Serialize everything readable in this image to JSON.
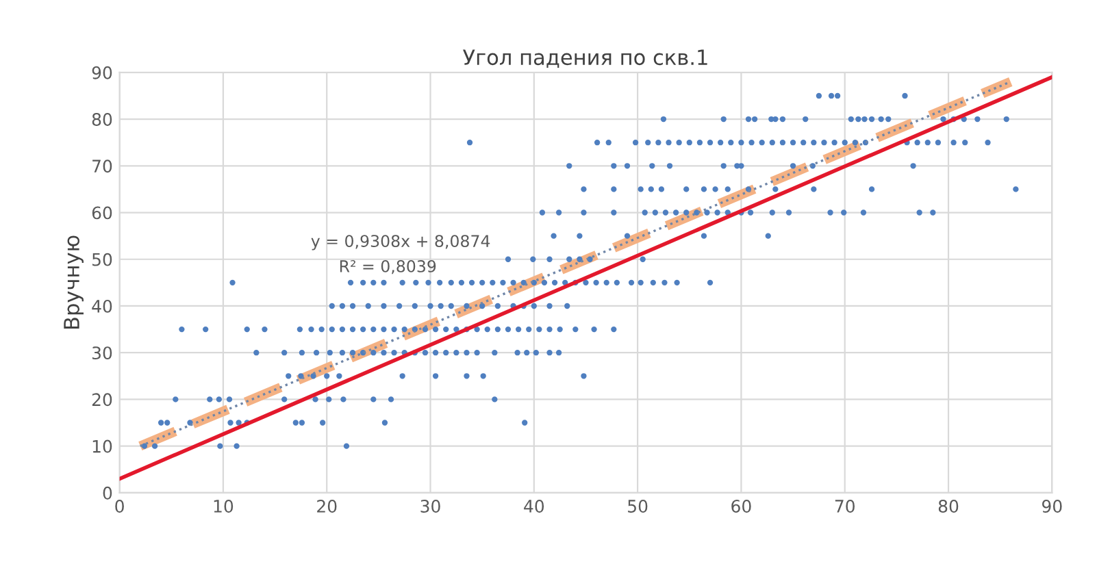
{
  "chart_data": {
    "type": "scatter",
    "title": "Угол падения по скв.1",
    "ylabel": "Вручную",
    "xlim": [
      0,
      90
    ],
    "ylim": [
      0,
      90
    ],
    "xticks": [
      0,
      10,
      20,
      30,
      40,
      50,
      60,
      70,
      80,
      90
    ],
    "yticks": [
      0,
      10,
      20,
      30,
      40,
      50,
      60,
      70,
      80,
      90
    ],
    "grid": true,
    "legend": false,
    "annotations": [
      "y = 0,9308x + 8,0874",
      "R² = 0,8039"
    ],
    "series": [
      {
        "marker": "circle",
        "color": "#4f7fc0",
        "x": [
          2.4,
          3.4,
          9.7,
          11.3,
          21.9,
          4,
          4.6,
          6.8,
          10.7,
          11.5,
          12.3,
          17,
          17.6,
          19.6,
          25.6,
          39.1,
          5.4,
          8.7,
          9.6,
          10.6,
          15.9,
          18.9,
          20.2,
          21.6,
          24.5,
          26.2,
          36.2,
          16.3,
          17.5,
          18.7,
          20,
          21.2,
          27.3,
          30.5,
          33.5,
          35.1,
          44.8,
          13.2,
          15.9,
          17.6,
          19,
          20.3,
          21.5,
          22.5,
          23.5,
          24.5,
          25.5,
          26.5,
          27.5,
          28.5,
          29.5,
          30.5,
          31.5,
          32.5,
          33.5,
          34.5,
          36.2,
          38.4,
          39.3,
          40.2,
          41.5,
          42.4,
          6,
          8.3,
          12.3,
          14,
          17.4,
          18.5,
          19.5,
          20.5,
          21.5,
          22.5,
          23.5,
          24.5,
          25.5,
          26.5,
          27.5,
          28.5,
          29.5,
          30.5,
          31.5,
          32.5,
          33.5,
          34.5,
          35.5,
          36.5,
          37.5,
          38.5,
          39.5,
          40.5,
          41.5,
          42.5,
          44,
          45.8,
          47.7,
          20.5,
          21.5,
          22.5,
          24,
          25.5,
          27,
          28.5,
          30,
          31,
          32,
          33.5,
          35,
          36.5,
          38,
          39,
          40,
          41.5,
          43.2,
          10.9,
          22.3,
          23.5,
          24.5,
          25.5,
          27.3,
          28.6,
          29.8,
          30.9,
          32,
          33,
          34,
          35,
          36,
          37,
          38,
          39,
          40,
          41,
          42,
          43,
          44,
          45,
          46,
          47,
          48,
          49.4,
          50.3,
          51.5,
          52.6,
          53.8,
          57,
          37.5,
          39.9,
          41.5,
          43.4,
          44.4,
          45.4,
          50.5,
          41.9,
          44.4,
          49,
          56.4,
          62.6,
          40.8,
          42.4,
          44.8,
          47.7,
          50.7,
          51.7,
          52.7,
          53.7,
          54.7,
          55.7,
          56.7,
          57.7,
          58.7,
          60,
          60.9,
          63,
          64.6,
          68.6,
          69.9,
          71.8,
          77.2,
          78.5,
          44.8,
          47.7,
          50.3,
          51.3,
          52.3,
          54.7,
          56.4,
          57.5,
          58.7,
          60.7,
          63.3,
          67,
          72.6,
          86.5,
          43.4,
          47.7,
          49,
          51.4,
          53.1,
          58.3,
          59.6,
          60,
          65,
          66.9,
          76.6,
          33.8,
          46.1,
          47.2,
          49.8,
          51,
          52,
          53,
          54,
          55,
          56,
          57,
          58,
          59,
          60,
          61,
          62,
          63,
          64,
          65,
          66,
          67,
          68,
          69,
          70,
          71,
          72,
          76,
          77,
          78,
          79,
          80.5,
          81.6,
          83.8,
          52.5,
          58.3,
          60.7,
          61.3,
          62.9,
          63.3,
          64,
          66.2,
          70.6,
          71.3,
          71.9,
          72.6,
          73.5,
          74.2,
          79.5,
          80.5,
          81.5,
          82.8,
          85.6,
          67.5,
          68.7,
          69.3,
          75.8
        ],
        "values": [
          10,
          10,
          10,
          10,
          10,
          15,
          15,
          15,
          15,
          15,
          15,
          15,
          15,
          15,
          15,
          15,
          20,
          20,
          20,
          20,
          20,
          20,
          20,
          20,
          20,
          20,
          20,
          25,
          25,
          25,
          25,
          25,
          25,
          25,
          25,
          25,
          25,
          30,
          30,
          30,
          30,
          30,
          30,
          30,
          30,
          30,
          30,
          30,
          30,
          30,
          30,
          30,
          30,
          30,
          30,
          30,
          30,
          30,
          30,
          30,
          30,
          30,
          35,
          35,
          35,
          35,
          35,
          35,
          35,
          35,
          35,
          35,
          35,
          35,
          35,
          35,
          35,
          35,
          35,
          35,
          35,
          35,
          35,
          35,
          35,
          35,
          35,
          35,
          35,
          35,
          35,
          35,
          35,
          35,
          35,
          40,
          40,
          40,
          40,
          40,
          40,
          40,
          40,
          40,
          40,
          40,
          40,
          40,
          40,
          40,
          40,
          40,
          40,
          45,
          45,
          45,
          45,
          45,
          45,
          45,
          45,
          45,
          45,
          45,
          45,
          45,
          45,
          45,
          45,
          45,
          45,
          45,
          45,
          45,
          45,
          45,
          45,
          45,
          45,
          45,
          45,
          45,
          45,
          45,
          45,
          50,
          50,
          50,
          50,
          50,
          50,
          50,
          55,
          55,
          55,
          55,
          55,
          60,
          60,
          60,
          60,
          60,
          60,
          60,
          60,
          60,
          60,
          60,
          60,
          60,
          60,
          60,
          60,
          60,
          60,
          60,
          60,
          60,
          60,
          65,
          65,
          65,
          65,
          65,
          65,
          65,
          65,
          65,
          65,
          65,
          65,
          65,
          65,
          70,
          70,
          70,
          70,
          70,
          70,
          70,
          70,
          70,
          70,
          70,
          75,
          75,
          75,
          75,
          75,
          75,
          75,
          75,
          75,
          75,
          75,
          75,
          75,
          75,
          75,
          75,
          75,
          75,
          75,
          75,
          75,
          75,
          75,
          75,
          75,
          75,
          75,
          75,
          75,
          75,
          75,
          75,
          75,
          80,
          80,
          80,
          80,
          80,
          80,
          80,
          80,
          80,
          80,
          80,
          80,
          80,
          80,
          80,
          80,
          80,
          80,
          80,
          85,
          85,
          85,
          85
        ]
      },
      {
        "type": "line",
        "color": "#f4b183",
        "line_style": "dashed",
        "x": [
          2,
          86
        ],
        "values": [
          10,
          88
        ]
      },
      {
        "type": "line",
        "color": "#6f86a8",
        "line_style": "dotted",
        "x": [
          2,
          86
        ],
        "values": [
          10,
          88
        ]
      },
      {
        "type": "line",
        "color": "#e3192c",
        "line_style": "solid",
        "x": [
          0,
          90
        ],
        "values": [
          3,
          89
        ]
      }
    ]
  }
}
